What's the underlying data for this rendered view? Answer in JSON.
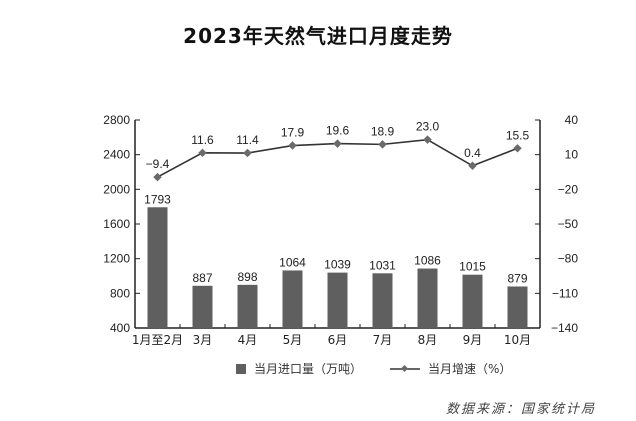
{
  "title": "2023年天然气进口月度走势",
  "legend": {
    "bar_label": "当月进口量（万吨）",
    "line_label": "当月增速（%）"
  },
  "source": "数据来源：国家统计局",
  "colors": {
    "bar": "#5f5f5f",
    "line": "#333333",
    "marker": "#6a6a6a",
    "axis": "#222222"
  },
  "chart_data": {
    "type": "bar",
    "title": "2023年天然气进口月度走势",
    "categories": [
      "1月至2月",
      "3月",
      "4月",
      "5月",
      "6月",
      "7月",
      "8月",
      "9月",
      "10月"
    ],
    "series": [
      {
        "name": "当月进口量（万吨）",
        "type": "bar",
        "axis": "left",
        "values": [
          1793,
          887,
          898,
          1064,
          1039,
          1031,
          1086,
          1015,
          879
        ]
      },
      {
        "name": "当月增速（%）",
        "type": "line",
        "axis": "right",
        "values": [
          -9.4,
          11.6,
          11.4,
          17.9,
          19.6,
          18.9,
          23.0,
          0.4,
          15.5
        ],
        "labels": [
          "-9.4",
          "11.6",
          "11.4",
          "17.9",
          "19.6",
          "18.9",
          "23.0",
          "0.4",
          "15.5"
        ]
      }
    ],
    "left_axis": {
      "ylim": [
        400,
        2800
      ],
      "ticks": [
        400,
        800,
        1200,
        1600,
        2000,
        2400,
        2800
      ]
    },
    "right_axis": {
      "ylim": [
        -140,
        40
      ],
      "ticks": [
        -140,
        -110,
        -80,
        -50,
        -20,
        10,
        40
      ]
    },
    "xlabel": "",
    "ylabel": "",
    "grid": false,
    "legend_position": "bottom",
    "source": "数据来源：国家统计局"
  }
}
